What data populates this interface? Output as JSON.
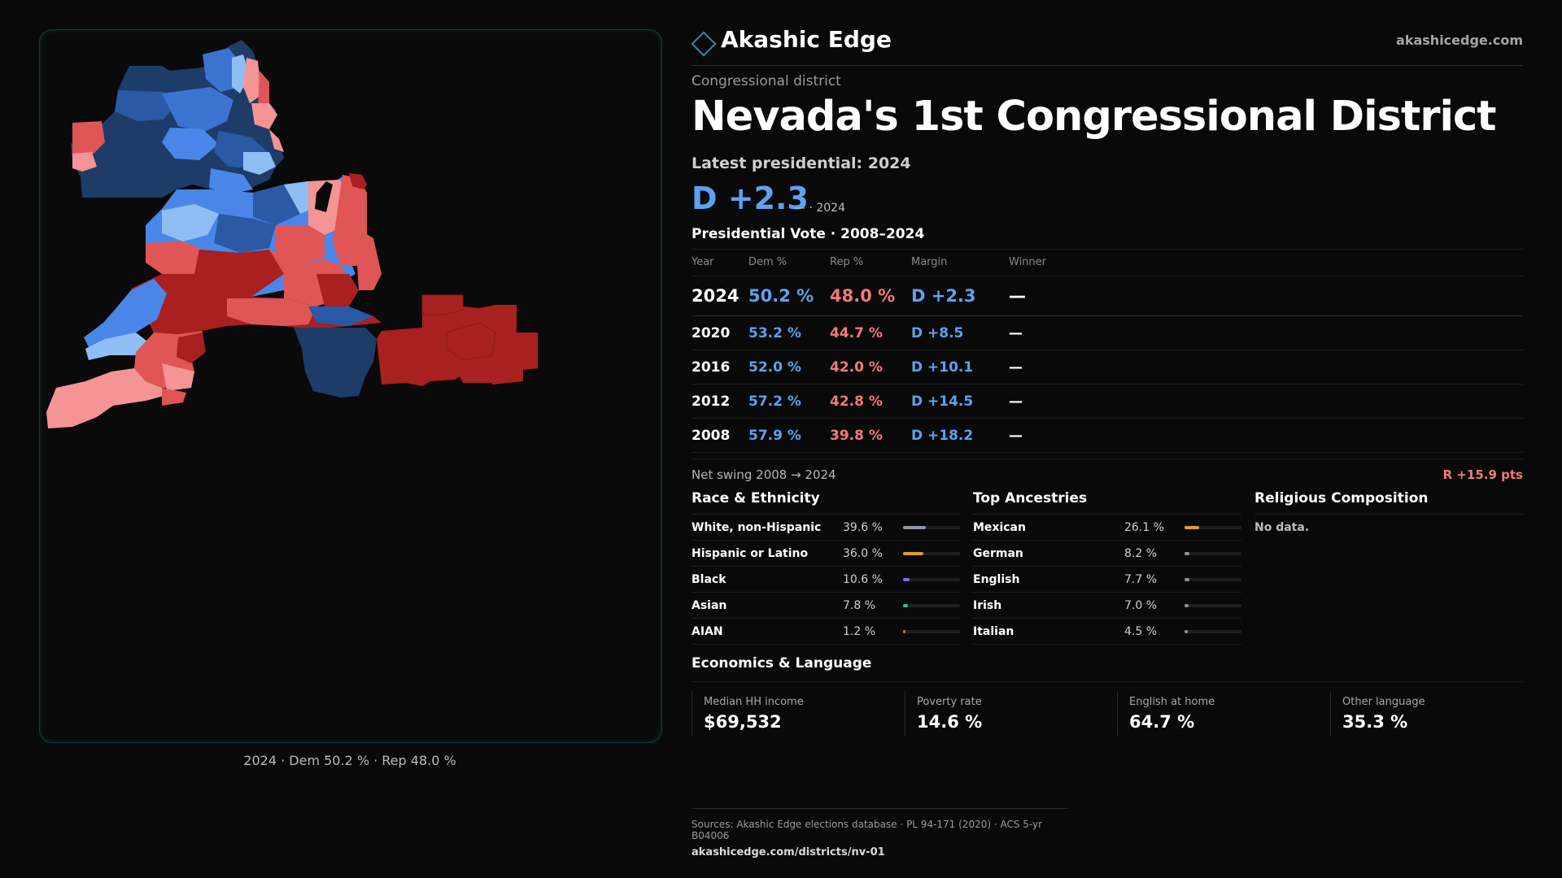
{
  "brand": {
    "name": "Akashic Edge",
    "url": "akashicedge.com"
  },
  "header": {
    "kicker": "Congressional district",
    "title": "Nevada's 1st Congressional District",
    "latest_label": "Latest presidential: 2024",
    "margin": "D +2.3",
    "margin_note": "— · 2024"
  },
  "presidential": {
    "title": "Presidential Vote · 2008–2024",
    "columns": [
      "Year",
      "Dem %",
      "Rep %",
      "Margin",
      "Winner"
    ],
    "rows": [
      {
        "year": "2024",
        "dem": "50.2 %",
        "rep": "48.0 %",
        "margin": "D +2.3",
        "winner": "—"
      },
      {
        "year": "2020",
        "dem": "53.2 %",
        "rep": "44.7 %",
        "margin": "D +8.5",
        "winner": "—"
      },
      {
        "year": "2016",
        "dem": "52.0 %",
        "rep": "42.0 %",
        "margin": "D +10.1",
        "winner": "—"
      },
      {
        "year": "2012",
        "dem": "57.2 %",
        "rep": "42.8 %",
        "margin": "D +14.5",
        "winner": "—"
      },
      {
        "year": "2008",
        "dem": "57.9 %",
        "rep": "39.8 %",
        "margin": "D +18.2",
        "winner": "—"
      }
    ],
    "swing_label": "Net swing 2008 → 2024",
    "swing_value": "R +15.9 pts"
  },
  "race": {
    "title": "Race & Ethnicity",
    "items": [
      {
        "name": "White, non-Hispanic",
        "pct": "39.6 %",
        "frac": 0.396,
        "color": "#8b95a3"
      },
      {
        "name": "Hispanic or Latino",
        "pct": "36.0 %",
        "frac": 0.36,
        "color": "#e0a020"
      },
      {
        "name": "Black",
        "pct": "10.6 %",
        "frac": 0.106,
        "color": "#7b6cf0"
      },
      {
        "name": "Asian",
        "pct": "7.8 %",
        "frac": 0.078,
        "color": "#22c58a"
      },
      {
        "name": "AIAN",
        "pct": "1.2 %",
        "frac": 0.012,
        "color": "#c07a3a"
      }
    ]
  },
  "ancestry": {
    "title": "Top Ancestries",
    "items": [
      {
        "name": "Mexican",
        "pct": "26.1 %",
        "frac": 0.261,
        "color": "#e0a020"
      },
      {
        "name": "German",
        "pct": "8.2 %",
        "frac": 0.082,
        "color": "#8b95a3"
      },
      {
        "name": "English",
        "pct": "7.7 %",
        "frac": 0.077,
        "color": "#8b95a3"
      },
      {
        "name": "Irish",
        "pct": "7.0 %",
        "frac": 0.07,
        "color": "#8b95a3"
      },
      {
        "name": "Italian",
        "pct": "4.5 %",
        "frac": 0.045,
        "color": "#8b95a3"
      }
    ]
  },
  "religion": {
    "title": "Religious Composition",
    "empty": "No data."
  },
  "economics": {
    "title": "Economics & Language",
    "cards": [
      {
        "label": "Median HH income",
        "value": "$69,532"
      },
      {
        "label": "Poverty rate",
        "value": "14.6 %"
      },
      {
        "label": "English at home",
        "value": "64.7 %"
      },
      {
        "label": "Other language",
        "value": "35.3 %"
      }
    ]
  },
  "map": {
    "caption": "2024 · Dem 50.2 % · Rep 48.0 %",
    "colors": {
      "dem_dark": "#1e3c68",
      "dem": "#4a86e8",
      "dem_light": "#8fbef5",
      "rep_light": "#f49494",
      "rep": "#e05555",
      "rep_dark": "#a82020"
    }
  },
  "footer": {
    "sources": "Sources: Akashic Edge elections database · PL 94-171 (2020) · ACS 5-yr B04006",
    "link": "akashicedge.com/districts/nv-01"
  }
}
